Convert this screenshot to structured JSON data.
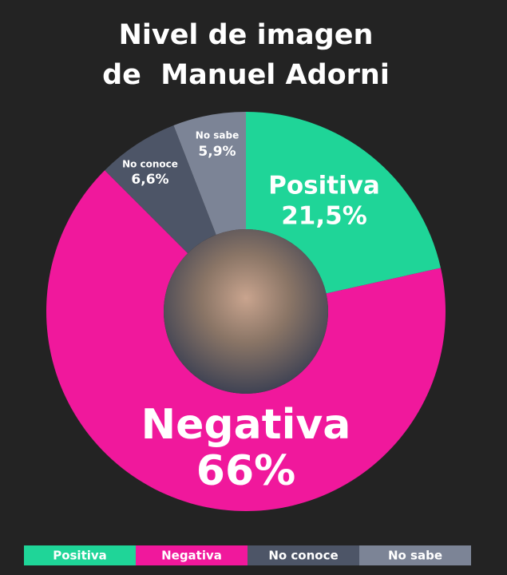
{
  "chart_data": {
    "type": "donut",
    "title": [
      "Nivel de imagen",
      "de  Manuel Adorni"
    ],
    "categories": [
      "Positiva",
      "Negativa",
      "No conoce",
      "No sabe"
    ],
    "values": [
      21.5,
      66,
      6.6,
      5.9
    ],
    "value_labels": [
      "21,5%",
      "66%",
      "6,6%",
      "5,9%"
    ],
    "colors": [
      "#1fd598",
      "#f0189c",
      "#4d5567",
      "#7c8496"
    ],
    "legend": "bottom"
  }
}
